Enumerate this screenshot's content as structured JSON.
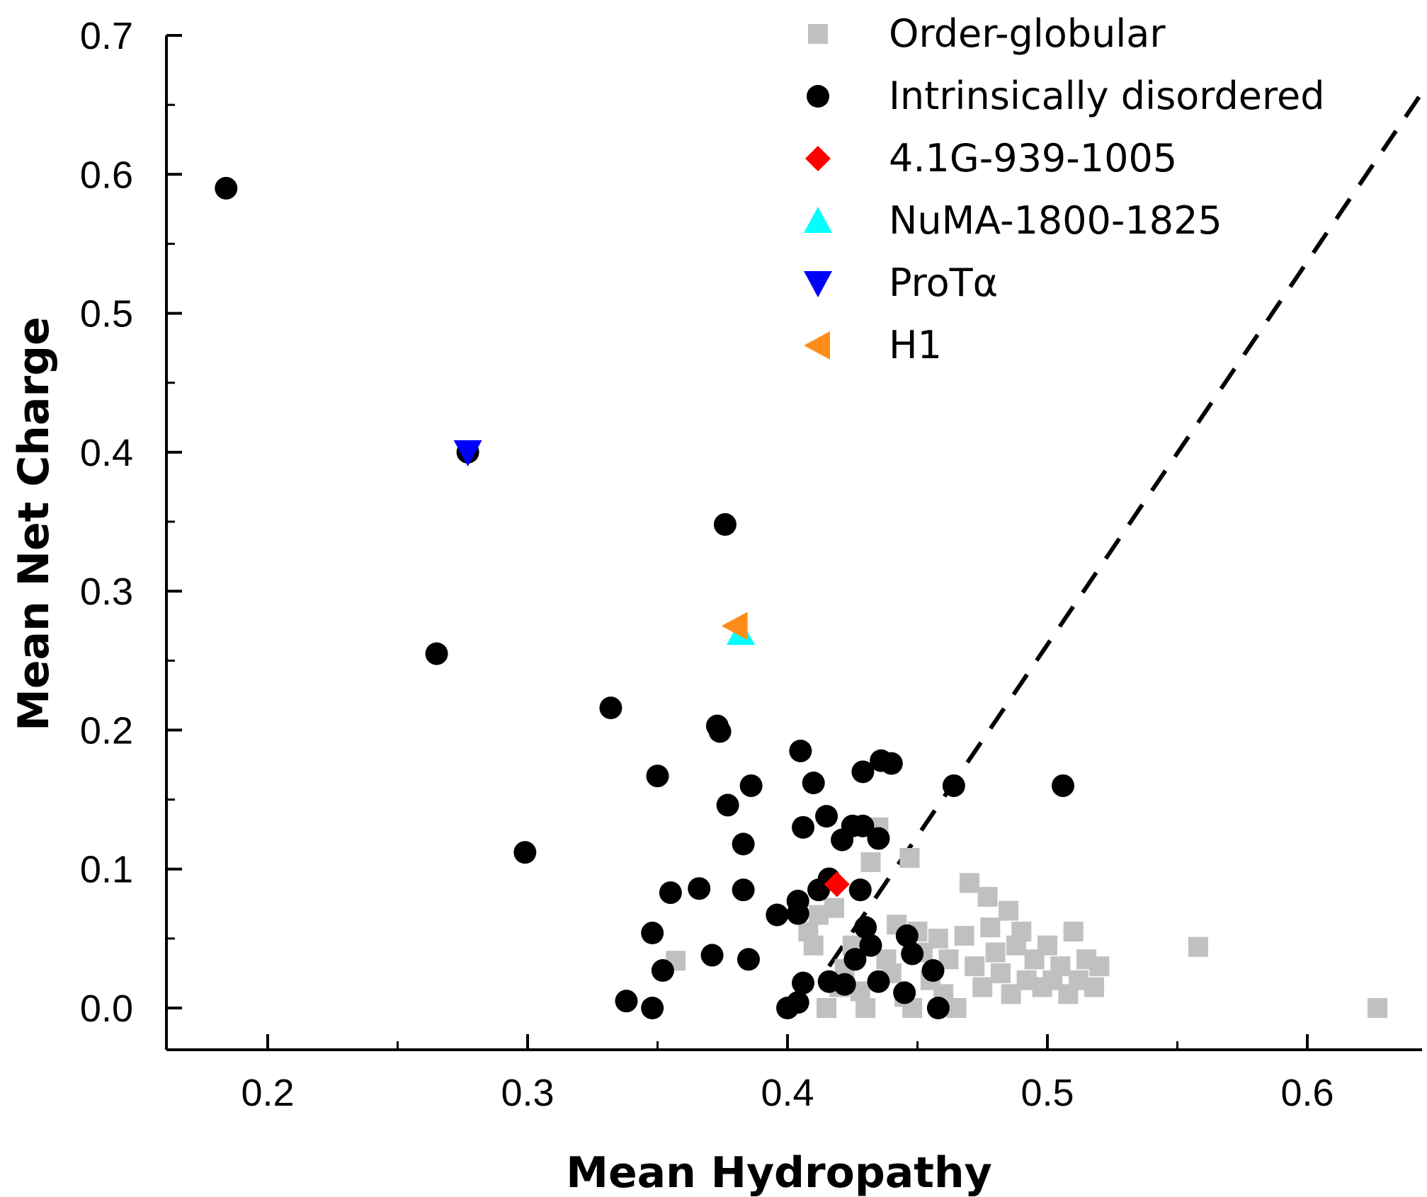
{
  "chart_data": {
    "type": "scatter",
    "title": "",
    "xlabel": "Mean Hydropathy",
    "ylabel": "Mean Net Charge",
    "xlim": [
      0.16,
      0.65
    ],
    "ylim": [
      -0.02,
      0.7
    ],
    "xticks": [
      0.2,
      0.3,
      0.4,
      0.5,
      0.6
    ],
    "xtick_labels": [
      "0.2",
      "0.3",
      "0.4",
      "0.5",
      "0.6"
    ],
    "yticks": [
      0.0,
      0.1,
      0.2,
      0.3,
      0.4,
      0.5,
      0.6,
      0.7
    ],
    "ytick_labels": [
      "0.0",
      "0.1",
      "0.2",
      "0.3",
      "0.4",
      "0.5",
      "0.6",
      "0.7"
    ],
    "grid": false,
    "legend_position": "top-right",
    "boundary_line": {
      "style": "dashed",
      "color": "#000000",
      "points": [
        [
          0.416,
          0.03
        ],
        [
          0.65,
          0.675
        ]
      ]
    },
    "series": [
      {
        "name": "Order-globular",
        "marker": "square",
        "color": "#c0c0c0",
        "points": [
          [
            0.357,
            0.034
          ],
          [
            0.408,
            0.055
          ],
          [
            0.412,
            0.067
          ],
          [
            0.418,
            0.072
          ],
          [
            0.41,
            0.045
          ],
          [
            0.422,
            0.028
          ],
          [
            0.425,
            0.045
          ],
          [
            0.428,
            0.012
          ],
          [
            0.432,
            0.105
          ],
          [
            0.435,
            0.13
          ],
          [
            0.438,
            0.035
          ],
          [
            0.44,
            0.025
          ],
          [
            0.442,
            0.06
          ],
          [
            0.445,
            0.008
          ],
          [
            0.447,
            0.108
          ],
          [
            0.45,
            0.055
          ],
          [
            0.452,
            0.04
          ],
          [
            0.455,
            0.02
          ],
          [
            0.458,
            0.05
          ],
          [
            0.46,
            0.01
          ],
          [
            0.462,
            0.035
          ],
          [
            0.465,
            0.0
          ],
          [
            0.468,
            0.052
          ],
          [
            0.47,
            0.09
          ],
          [
            0.472,
            0.03
          ],
          [
            0.475,
            0.015
          ],
          [
            0.477,
            0.08
          ],
          [
            0.478,
            0.058
          ],
          [
            0.48,
            0.04
          ],
          [
            0.482,
            0.025
          ],
          [
            0.485,
            0.07
          ],
          [
            0.486,
            0.01
          ],
          [
            0.488,
            0.045
          ],
          [
            0.49,
            0.055
          ],
          [
            0.492,
            0.02
          ],
          [
            0.495,
            0.035
          ],
          [
            0.498,
            0.015
          ],
          [
            0.5,
            0.045
          ],
          [
            0.502,
            0.02
          ],
          [
            0.505,
            0.03
          ],
          [
            0.508,
            0.01
          ],
          [
            0.51,
            0.055
          ],
          [
            0.512,
            0.02
          ],
          [
            0.515,
            0.035
          ],
          [
            0.518,
            0.015
          ],
          [
            0.52,
            0.03
          ],
          [
            0.415,
            0.0
          ],
          [
            0.42,
            0.015
          ],
          [
            0.43,
            0.0
          ],
          [
            0.448,
            0.0
          ],
          [
            0.558,
            0.044
          ],
          [
            0.627,
            0.0
          ]
        ]
      },
      {
        "name": "Intrinsically disordered",
        "marker": "circle",
        "color": "#000000",
        "points": [
          [
            0.184,
            0.59
          ],
          [
            0.277,
            0.4
          ],
          [
            0.265,
            0.255
          ],
          [
            0.376,
            0.348
          ],
          [
            0.299,
            0.112
          ],
          [
            0.332,
            0.216
          ],
          [
            0.373,
            0.203
          ],
          [
            0.374,
            0.199
          ],
          [
            0.35,
            0.167
          ],
          [
            0.386,
            0.16
          ],
          [
            0.377,
            0.146
          ],
          [
            0.383,
            0.118
          ],
          [
            0.355,
            0.083
          ],
          [
            0.366,
            0.086
          ],
          [
            0.383,
            0.085
          ],
          [
            0.348,
            0.054
          ],
          [
            0.352,
            0.027
          ],
          [
            0.371,
            0.038
          ],
          [
            0.385,
            0.035
          ],
          [
            0.338,
            0.005
          ],
          [
            0.348,
            0.0
          ],
          [
            0.396,
            0.067
          ],
          [
            0.405,
            0.185
          ],
          [
            0.41,
            0.162
          ],
          [
            0.406,
            0.13
          ],
          [
            0.415,
            0.138
          ],
          [
            0.425,
            0.131
          ],
          [
            0.421,
            0.121
          ],
          [
            0.429,
            0.131
          ],
          [
            0.429,
            0.17
          ],
          [
            0.436,
            0.178
          ],
          [
            0.44,
            0.176
          ],
          [
            0.435,
            0.122
          ],
          [
            0.416,
            0.093
          ],
          [
            0.412,
            0.085
          ],
          [
            0.404,
            0.077
          ],
          [
            0.404,
            0.068
          ],
          [
            0.428,
            0.085
          ],
          [
            0.43,
            0.058
          ],
          [
            0.432,
            0.045
          ],
          [
            0.426,
            0.035
          ],
          [
            0.406,
            0.018
          ],
          [
            0.416,
            0.019
          ],
          [
            0.422,
            0.017
          ],
          [
            0.435,
            0.019
          ],
          [
            0.445,
            0.011
          ],
          [
            0.4,
            0.0
          ],
          [
            0.404,
            0.004
          ],
          [
            0.446,
            0.052
          ],
          [
            0.448,
            0.039
          ],
          [
            0.456,
            0.027
          ],
          [
            0.458,
            0.0
          ],
          [
            0.464,
            0.16
          ],
          [
            0.506,
            0.16
          ]
        ]
      },
      {
        "name": "4.1G-939-1005",
        "marker": "diamond",
        "color": "#ff0000",
        "points": [
          [
            0.419,
            0.089
          ]
        ]
      },
      {
        "name": "NuMA-1800-1825",
        "marker": "triangle-up",
        "color": "#00ffff",
        "points": [
          [
            0.382,
            0.27
          ]
        ]
      },
      {
        "name": "ProTα",
        "marker": "triangle-down",
        "color": "#0000ff",
        "points": [
          [
            0.277,
            0.4
          ]
        ]
      },
      {
        "name": "H1",
        "marker": "triangle-left",
        "color": "#ff8c1a",
        "points": [
          [
            0.38,
            0.275
          ]
        ]
      }
    ]
  }
}
